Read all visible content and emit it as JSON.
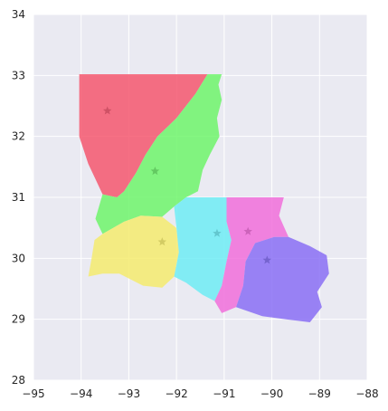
{
  "chart_data": {
    "type": "map",
    "xlim": [
      -95,
      -88
    ],
    "ylim": [
      28,
      34
    ],
    "x_ticks": [
      -95,
      -94,
      -93,
      -92,
      -91,
      -90,
      -89,
      -88
    ],
    "y_ticks": [
      28,
      29,
      30,
      31,
      32,
      33,
      34
    ],
    "x_tick_labels": [
      "−95",
      "−94",
      "−93",
      "−92",
      "−91",
      "−90",
      "−89",
      "−88"
    ],
    "y_tick_labels": [
      "28",
      "29",
      "30",
      "31",
      "32",
      "33",
      "34"
    ],
    "grid": true,
    "background": "#EAEAF2",
    "regions": [
      {
        "color": "#F5576F",
        "centroid": [
          -93.45,
          32.42
        ],
        "boundary": [
          [
            -94.04,
            33.02
          ],
          [
            -91.35,
            33.02
          ],
          [
            -91.6,
            32.7
          ],
          [
            -92.0,
            32.3
          ],
          [
            -92.4,
            32.0
          ],
          [
            -92.65,
            31.7
          ],
          [
            -92.85,
            31.4
          ],
          [
            -93.1,
            31.1
          ],
          [
            -93.25,
            31.0
          ],
          [
            -93.55,
            31.05
          ],
          [
            -93.7,
            31.3
          ],
          [
            -93.85,
            31.55
          ],
          [
            -94.04,
            32.0
          ]
        ]
      },
      {
        "color": "#6EF56B",
        "centroid": [
          -92.45,
          31.43
        ],
        "boundary": [
          [
            -91.35,
            33.02
          ],
          [
            -91.05,
            33.02
          ],
          [
            -91.12,
            32.85
          ],
          [
            -91.05,
            32.6
          ],
          [
            -91.15,
            32.3
          ],
          [
            -91.1,
            32.0
          ],
          [
            -91.3,
            31.7
          ],
          [
            -91.45,
            31.45
          ],
          [
            -91.55,
            31.1
          ],
          [
            -91.8,
            31.0
          ],
          [
            -92.05,
            30.85
          ],
          [
            -92.3,
            30.68
          ],
          [
            -92.75,
            30.7
          ],
          [
            -93.1,
            30.6
          ],
          [
            -93.55,
            30.4
          ],
          [
            -93.7,
            30.65
          ],
          [
            -93.55,
            31.05
          ],
          [
            -93.25,
            31.0
          ],
          [
            -93.1,
            31.1
          ],
          [
            -92.85,
            31.4
          ],
          [
            -92.65,
            31.7
          ],
          [
            -92.4,
            32.0
          ],
          [
            -92.0,
            32.3
          ],
          [
            -91.6,
            32.7
          ]
        ]
      },
      {
        "color": "#F5EB6E",
        "centroid": [
          -92.3,
          30.27
        ],
        "boundary": [
          [
            -93.55,
            30.4
          ],
          [
            -93.1,
            30.6
          ],
          [
            -92.75,
            30.7
          ],
          [
            -92.3,
            30.68
          ],
          [
            -92.0,
            30.5
          ],
          [
            -91.95,
            30.1
          ],
          [
            -92.05,
            29.7
          ],
          [
            -92.3,
            29.52
          ],
          [
            -92.7,
            29.55
          ],
          [
            -93.2,
            29.75
          ],
          [
            -93.55,
            29.75
          ],
          [
            -93.85,
            29.7
          ],
          [
            -93.78,
            30.0
          ],
          [
            -93.72,
            30.3
          ]
        ]
      },
      {
        "color": "#6EECF5",
        "centroid": [
          -91.15,
          30.41
        ],
        "boundary": [
          [
            -91.8,
            31.0
          ],
          [
            -90.95,
            31.0
          ],
          [
            -90.95,
            30.6
          ],
          [
            -90.85,
            30.3
          ],
          [
            -90.95,
            29.95
          ],
          [
            -91.05,
            29.55
          ],
          [
            -91.2,
            29.3
          ],
          [
            -91.45,
            29.4
          ],
          [
            -91.8,
            29.6
          ],
          [
            -92.05,
            29.7
          ],
          [
            -91.95,
            30.1
          ],
          [
            -92.0,
            30.5
          ],
          [
            -92.05,
            30.85
          ]
        ]
      },
      {
        "color": "#F16EDB",
        "centroid": [
          -90.5,
          30.44
        ],
        "boundary": [
          [
            -90.95,
            31.0
          ],
          [
            -89.75,
            31.0
          ],
          [
            -89.85,
            30.7
          ],
          [
            -89.65,
            30.35
          ],
          [
            -89.95,
            30.35
          ],
          [
            -90.35,
            30.25
          ],
          [
            -90.55,
            29.95
          ],
          [
            -90.6,
            29.55
          ],
          [
            -90.75,
            29.2
          ],
          [
            -91.05,
            29.1
          ],
          [
            -91.2,
            29.3
          ],
          [
            -91.05,
            29.55
          ],
          [
            -90.95,
            29.95
          ],
          [
            -90.85,
            30.3
          ],
          [
            -90.95,
            30.6
          ]
        ]
      },
      {
        "color": "#8A6EF5",
        "centroid": [
          -90.1,
          29.97
        ],
        "boundary": [
          [
            -89.65,
            30.35
          ],
          [
            -89.95,
            30.35
          ],
          [
            -90.35,
            30.25
          ],
          [
            -90.55,
            29.95
          ],
          [
            -90.6,
            29.55
          ],
          [
            -90.75,
            29.2
          ],
          [
            -90.2,
            29.05
          ],
          [
            -89.7,
            29.0
          ],
          [
            -89.2,
            28.95
          ],
          [
            -88.95,
            29.2
          ],
          [
            -89.05,
            29.45
          ],
          [
            -88.8,
            29.75
          ],
          [
            -88.85,
            30.05
          ],
          [
            -89.2,
            30.2
          ]
        ]
      }
    ]
  }
}
